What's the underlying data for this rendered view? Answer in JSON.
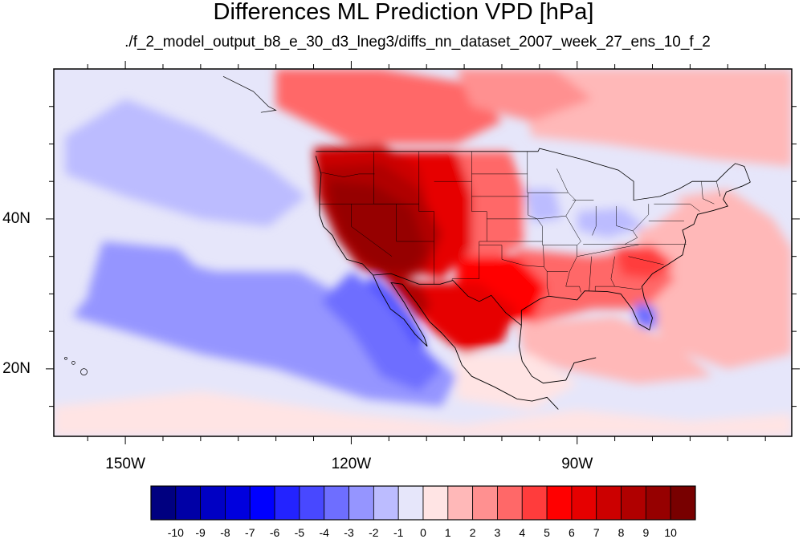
{
  "chart_data": {
    "type": "heatmap",
    "title": "Differences ML Prediction VPD [hPa]",
    "subtitle": "./f_2_model_output_b8_e_30_d3_lneg3/diffs_nn_dataset_2007_week_27_ens_10_f_2",
    "x_ticks": [
      {
        "value": -150,
        "label": "150W"
      },
      {
        "value": -120,
        "label": "120W"
      },
      {
        "value": -90,
        "label": "90W"
      }
    ],
    "y_ticks": [
      {
        "value": 40,
        "label": "40N"
      },
      {
        "value": 20,
        "label": "20N"
      }
    ],
    "lon_range": [
      -159.5,
      -61.5
    ],
    "lat_range": [
      11,
      60
    ],
    "colorbar": {
      "levels": [
        "-10",
        "-9",
        "-8",
        "-7",
        "-6",
        "-5",
        "-4",
        "-3",
        "-2",
        "-1",
        "0",
        "1",
        "2",
        "3",
        "4",
        "5",
        "6",
        "7",
        "8",
        "9",
        "10"
      ],
      "colors": [
        "#000080",
        "#0000a6",
        "#0000c4",
        "#0000de",
        "#0000ff",
        "#2323ff",
        "#4848ff",
        "#6e6eff",
        "#9595ff",
        "#bcbcff",
        "#e6e6fa",
        "#ffe4e4",
        "#ffb8b8",
        "#ff9090",
        "#ff6868",
        "#ff3c3c",
        "#ff0000",
        "#e60000",
        "#cc0000",
        "#b00000",
        "#960000",
        "#780000"
      ]
    },
    "regions": [
      {
        "name": "background",
        "value": -0.5
      },
      {
        "name": "pacific-north",
        "value": -1.5
      },
      {
        "name": "pacific-central",
        "value": -2.5
      },
      {
        "name": "baja-coast",
        "value": -3.5
      },
      {
        "name": "gulf-california",
        "value": -5
      },
      {
        "name": "hawaii-east",
        "value": -2.5
      },
      {
        "name": "tropical-south",
        "value": 0.5
      },
      {
        "name": "atlantic-east",
        "value": 1.5
      },
      {
        "name": "canada-east",
        "value": 1.5
      },
      {
        "name": "caribbean",
        "value": 1.5
      },
      {
        "name": "south-mexico",
        "value": 0.5
      },
      {
        "name": "canada-west",
        "value": 3.5
      },
      {
        "name": "canada-north",
        "value": 2.5
      },
      {
        "name": "great-plains",
        "value": 3.5
      },
      {
        "name": "southeast-us",
        "value": 3.5
      },
      {
        "name": "carolinas",
        "value": 4.5
      },
      {
        "name": "midwest",
        "value": -0.5
      },
      {
        "name": "iowa-pocket",
        "value": -1.5
      },
      {
        "name": "ohio-valley",
        "value": -1.5
      },
      {
        "name": "florida",
        "value": -3.5
      },
      {
        "name": "texas",
        "value": 5.5
      },
      {
        "name": "mexico-north",
        "value": 6.5
      },
      {
        "name": "rockies",
        "value": 6.5
      },
      {
        "name": "pacific-northwest",
        "value": 7.5
      },
      {
        "name": "intermountain",
        "value": 8.5
      },
      {
        "name": "great-basin",
        "value": 9.5
      },
      {
        "name": "baja-inland",
        "value": 8.5
      }
    ]
  }
}
